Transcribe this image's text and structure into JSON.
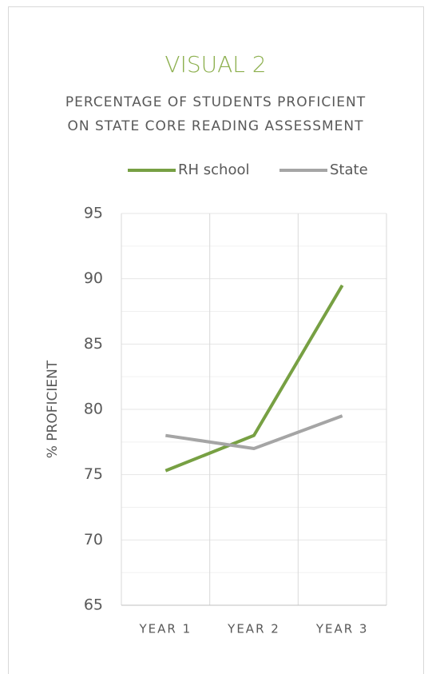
{
  "chart_data": {
    "type": "line",
    "title": "VISUAL 2",
    "subtitle": [
      "PERCENTAGE OF STUDENTS PROFICIENT",
      "ON STATE CORE READING ASSESSMENT"
    ],
    "y_label": "% PROFICIENT",
    "categories": [
      "YEAR 1",
      "YEAR 2",
      "YEAR 3"
    ],
    "series": [
      {
        "name": "RH school",
        "color": "#77a043",
        "values": [
          75.3,
          78,
          89.5
        ]
      },
      {
        "name": "State",
        "color": "#a5a5a5",
        "values": [
          78,
          77,
          79.5
        ]
      }
    ],
    "ylim": [
      65,
      95
    ],
    "yticks": [
      65,
      70,
      75,
      80,
      85,
      90,
      95
    ],
    "minor_yticks": [
      67.5,
      72.5,
      77.5,
      82.5,
      87.5,
      92.5
    ],
    "grid": true,
    "legend": "top"
  }
}
